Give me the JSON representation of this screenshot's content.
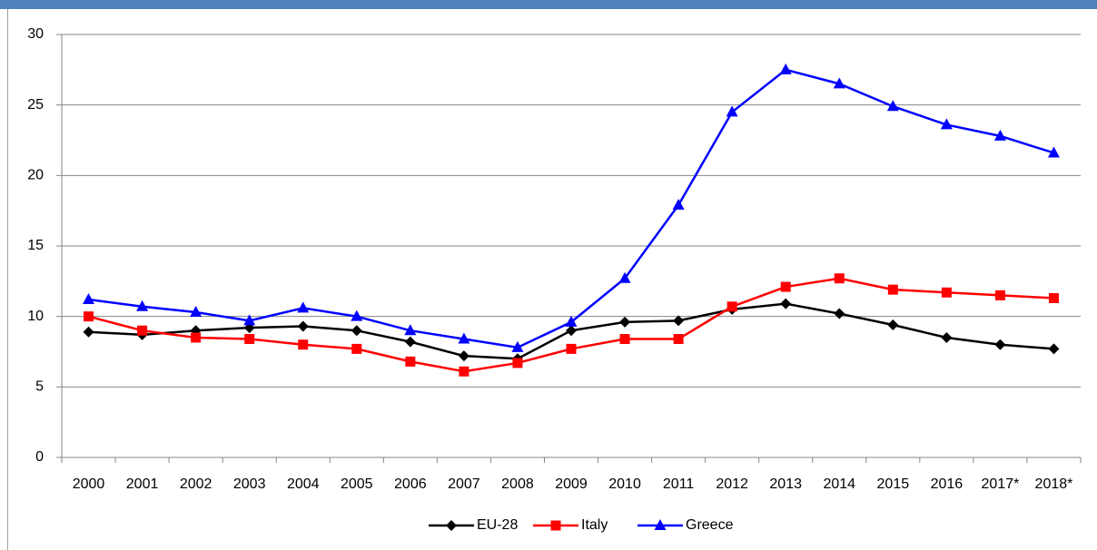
{
  "chart_data": {
    "type": "line",
    "categories": [
      "2000",
      "2001",
      "2002",
      "2003",
      "2004",
      "2005",
      "2006",
      "2007",
      "2008",
      "2009",
      "2010",
      "2011",
      "2012",
      "2013",
      "2014",
      "2015",
      "2016",
      "2017*",
      "2018*"
    ],
    "series": [
      {
        "name": "EU-28",
        "color": "#000000",
        "marker": "diamond",
        "values": [
          8.9,
          8.7,
          9.0,
          9.2,
          9.3,
          9.0,
          8.2,
          7.2,
          7.0,
          9.0,
          9.6,
          9.7,
          10.5,
          10.9,
          10.2,
          9.4,
          8.5,
          8.0,
          7.7
        ]
      },
      {
        "name": "Italy",
        "color": "#ff0000",
        "marker": "square",
        "values": [
          10.0,
          9.0,
          8.5,
          8.4,
          8.0,
          7.7,
          6.8,
          6.1,
          6.7,
          7.7,
          8.4,
          8.4,
          10.7,
          12.1,
          12.7,
          11.9,
          11.7,
          11.5,
          11.3
        ]
      },
      {
        "name": "Greece",
        "color": "#0000ff",
        "marker": "triangle",
        "values": [
          11.2,
          10.7,
          10.3,
          9.7,
          10.6,
          10.0,
          9.0,
          8.4,
          7.8,
          9.6,
          12.7,
          17.9,
          24.5,
          27.5,
          26.5,
          24.9,
          23.6,
          22.8,
          21.6
        ]
      }
    ],
    "ylim": [
      0,
      30
    ],
    "yticks": [
      0,
      5,
      10,
      15,
      20,
      25,
      30
    ],
    "grid": true,
    "legend": "bottom"
  }
}
